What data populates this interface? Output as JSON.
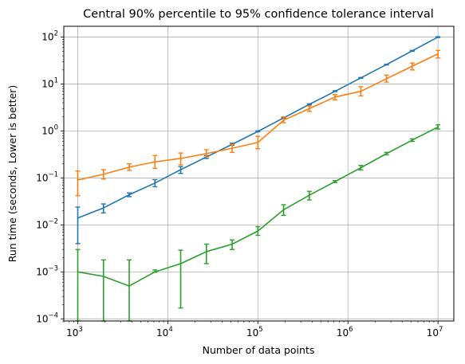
{
  "chart_data": {
    "type": "line",
    "title": "Central 90% percentile to 95% confidence tolerance interval",
    "xlabel": "Number of data points",
    "ylabel": "Run time (seconds, Lower is better)",
    "xscale": "log",
    "yscale": "log",
    "xlim": [
      700,
      15000000
    ],
    "ylim": [
      9e-05,
      170
    ],
    "grid": true,
    "xticks": [
      {
        "value": 1000,
        "base": "10",
        "exp": "3"
      },
      {
        "value": 10000,
        "base": "10",
        "exp": "4"
      },
      {
        "value": 100000,
        "base": "10",
        "exp": "5"
      },
      {
        "value": 1000000,
        "base": "10",
        "exp": "6"
      },
      {
        "value": 10000000,
        "base": "10",
        "exp": "7"
      }
    ],
    "yticks": [
      {
        "value": 0.0001,
        "base": "10",
        "exp": "−4"
      },
      {
        "value": 0.001,
        "base": "10",
        "exp": "−3"
      },
      {
        "value": 0.01,
        "base": "10",
        "exp": "−2"
      },
      {
        "value": 0.1,
        "base": "10",
        "exp": "−1"
      },
      {
        "value": 1,
        "base": "10",
        "exp": "0"
      },
      {
        "value": 10,
        "base": "10",
        "exp": "1"
      },
      {
        "value": 100,
        "base": "10",
        "exp": "2"
      }
    ],
    "x": [
      1000,
      1931,
      3728,
      7197,
      13895,
      26827,
      51795,
      100000,
      193070,
      372759,
      719686,
      1389495,
      2682696,
      5179475,
      10000000
    ],
    "series": [
      {
        "color": "#1f77b4",
        "values": [
          0.014,
          0.023,
          0.044,
          0.078,
          0.15,
          0.28,
          0.52,
          0.98,
          1.9,
          3.7,
          7.0,
          13.5,
          26,
          51,
          100
        ],
        "err_low": [
          0.004,
          0.018,
          0.04,
          0.065,
          0.125,
          0.26,
          0.5,
          0.96,
          1.87,
          3.6,
          6.9,
          13.3,
          25.5,
          50,
          98
        ],
        "err_high": [
          0.024,
          0.028,
          0.048,
          0.092,
          0.175,
          0.3,
          0.55,
          1.01,
          1.95,
          3.8,
          7.2,
          13.8,
          26.5,
          52,
          102
        ]
      },
      {
        "color": "#ff7f0e",
        "values": [
          0.09,
          0.12,
          0.17,
          0.22,
          0.26,
          0.33,
          0.43,
          0.57,
          1.7,
          3.0,
          5.3,
          7.0,
          13,
          24,
          44
        ],
        "err_low": [
          0.042,
          0.095,
          0.145,
          0.16,
          0.19,
          0.28,
          0.35,
          0.42,
          1.5,
          2.6,
          4.6,
          5.6,
          11,
          20,
          36
        ],
        "err_high": [
          0.14,
          0.15,
          0.2,
          0.3,
          0.34,
          0.4,
          0.52,
          0.77,
          2.0,
          3.4,
          6.0,
          8.8,
          15.5,
          28,
          52
        ]
      },
      {
        "color": "#2ca02c",
        "values": [
          0.001,
          0.0008,
          0.0005,
          0.001,
          0.0015,
          0.0027,
          0.0039,
          0.0074,
          0.021,
          0.043,
          0.084,
          0.165,
          0.33,
          0.64,
          1.22
        ],
        "err_low": [
          9e-05,
          9e-05,
          9e-05,
          0.00098,
          0.00017,
          0.0015,
          0.003,
          0.006,
          0.016,
          0.034,
          0.08,
          0.148,
          0.31,
          0.6,
          1.1
        ],
        "err_high": [
          0.003,
          0.0018,
          0.0018,
          0.0011,
          0.0029,
          0.0039,
          0.0048,
          0.0092,
          0.027,
          0.052,
          0.088,
          0.185,
          0.35,
          0.68,
          1.35
        ]
      }
    ]
  }
}
